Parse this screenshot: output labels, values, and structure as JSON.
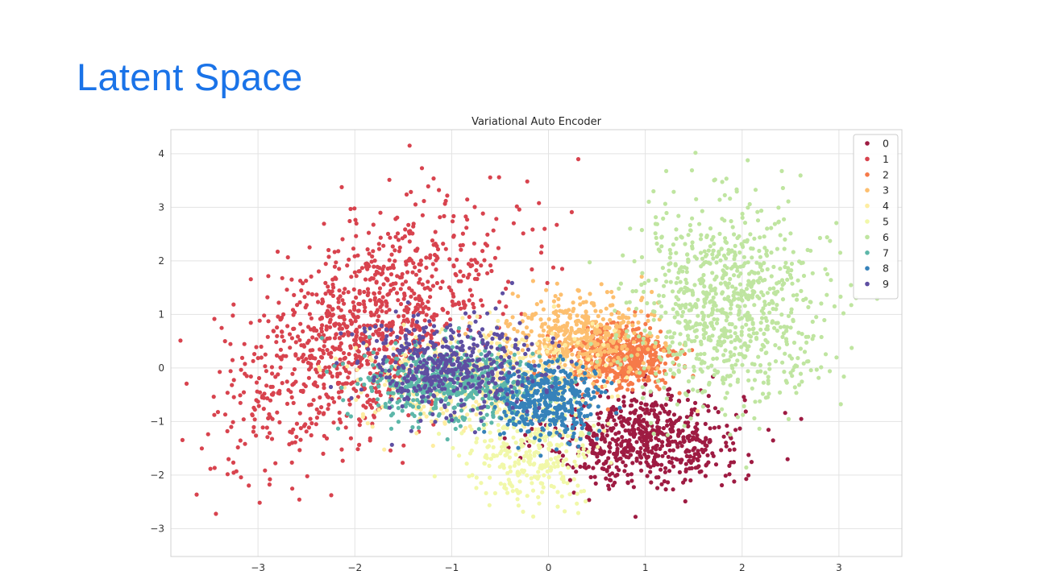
{
  "slide": {
    "title": "Latent Space"
  },
  "chart_data": {
    "type": "scatter",
    "title": "Variational Auto Encoder",
    "xlabel": "",
    "ylabel": "",
    "xlim": [
      -3.9,
      3.65
    ],
    "ylim": [
      -3.52,
      4.45
    ],
    "xticks": [
      -3,
      -2,
      -1,
      0,
      1,
      2,
      3
    ],
    "yticks": [
      -3,
      -2,
      -1,
      0,
      1,
      2,
      3,
      4
    ],
    "xtick_labels": [
      "−3",
      "−2",
      "−1",
      "0",
      "1",
      "2",
      "3"
    ],
    "ytick_labels": [
      "−3",
      "−2",
      "−1",
      "0",
      "1",
      "2",
      "3",
      "4"
    ],
    "grid": true,
    "legend_position": "top-right",
    "series": [
      {
        "name": "0",
        "color": "#9e1b42",
        "center": [
          1.0,
          -1.3
        ],
        "spread": [
          0.5,
          0.45
        ],
        "count": 650
      },
      {
        "name": "1",
        "color": "#d8434e",
        "center": [
          -1.9,
          0.7
        ],
        "spread": [
          0.7,
          1.1
        ],
        "corr": 0.55,
        "count": 1100
      },
      {
        "name": "2",
        "color": "#f67a49",
        "center": [
          0.75,
          0.2
        ],
        "spread": [
          0.28,
          0.3
        ],
        "count": 550
      },
      {
        "name": "3",
        "color": "#fdbf6f",
        "center": [
          0.3,
          0.6
        ],
        "spread": [
          0.35,
          0.4
        ],
        "count": 450
      },
      {
        "name": "4",
        "color": "#feeda1",
        "center": [
          -0.7,
          -0.2
        ],
        "spread": [
          0.6,
          0.45
        ],
        "count": 500
      },
      {
        "name": "5",
        "color": "#f1f8a9",
        "center": [
          -0.15,
          -1.6
        ],
        "spread": [
          0.35,
          0.45
        ],
        "count": 300
      },
      {
        "name": "6",
        "color": "#bfe5a0",
        "center": [
          1.85,
          1.2
        ],
        "spread": [
          0.5,
          0.9
        ],
        "count": 850
      },
      {
        "name": "7",
        "color": "#5db7a9",
        "center": [
          -1.0,
          -0.3
        ],
        "spread": [
          0.45,
          0.35
        ],
        "count": 550
      },
      {
        "name": "8",
        "color": "#3682ba",
        "center": [
          0.0,
          -0.6
        ],
        "spread": [
          0.25,
          0.35
        ],
        "count": 400
      },
      {
        "name": "9",
        "color": "#5e4fa2",
        "center": [
          -1.05,
          0.0
        ],
        "spread": [
          0.45,
          0.45
        ],
        "count": 450
      }
    ]
  }
}
